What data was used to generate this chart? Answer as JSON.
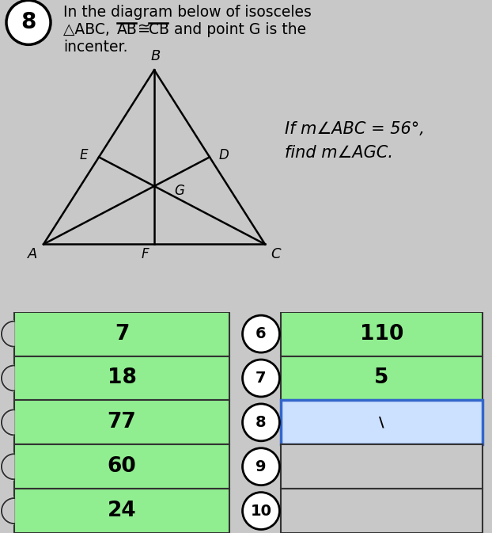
{
  "title_number": "8",
  "line1": "In the diagram below of isosceles",
  "line2_pre": "△ABC, ",
  "line2_AB": "AB",
  "line2_cong": " ≅ ",
  "line2_CB": "CB",
  "line2_post": " and point G is the",
  "line3": "incenter.",
  "cond1": "If m∠ABC = 56°,",
  "cond2": "find m∠AGC.",
  "left_col_values": [
    "7",
    "18",
    "77",
    "60",
    "24"
  ],
  "middle_col_values": [
    "6",
    "7",
    "8",
    "9",
    "10"
  ],
  "right_col_values": [
    "110",
    "5",
    "\\",
    "",
    ""
  ],
  "left_col_color": "#90EE90",
  "right_green": "#90EE90",
  "right_blue": "#cce0ff",
  "right_blue_border": "#3366cc",
  "bg_color": "#c8c8c8",
  "white": "#ffffff",
  "black": "#000000",
  "gray_border": "#333333"
}
